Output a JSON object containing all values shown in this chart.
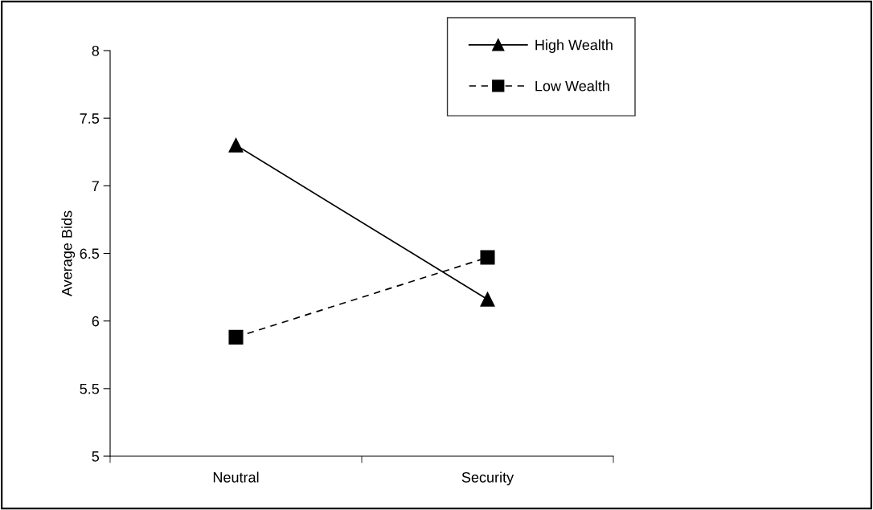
{
  "chart_data": {
    "type": "line",
    "ylabel": "Average Bids",
    "categories": [
      "Neutral",
      "Security"
    ],
    "series": [
      {
        "name": "High Wealth",
        "color": "#000000",
        "values": [
          7.3,
          6.16
        ],
        "marker": "triangle",
        "line_style": "solid"
      },
      {
        "name": "Low Wealth",
        "color": "#000000",
        "values": [
          5.88,
          6.47
        ],
        "marker": "square",
        "line_style": "dashed"
      }
    ],
    "ylim": [
      5,
      8
    ],
    "yticks": [
      5,
      5.5,
      6,
      6.5,
      7,
      7.5,
      8
    ],
    "grid": false,
    "legend": "top right"
  }
}
